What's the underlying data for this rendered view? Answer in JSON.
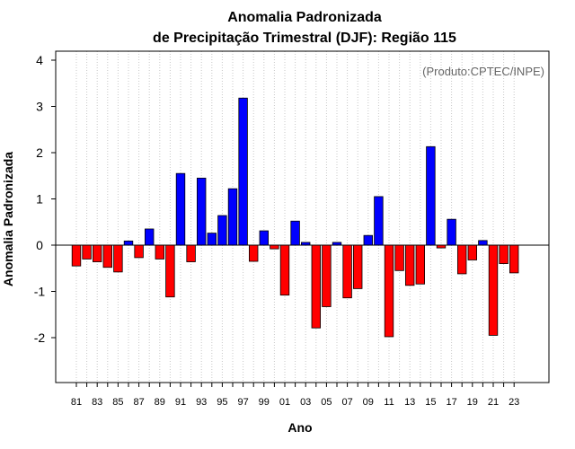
{
  "chart_data": {
    "type": "bar",
    "title": "Anomalia Padronizada",
    "subtitle": "de Precipitação Trimestral (DJF): Região 115",
    "xlabel": "Ano",
    "ylabel": "Anomalia Padronizada",
    "annotation": "(Produto:CPTEC/INPE)",
    "ylim": [
      -3,
      4.2
    ],
    "yticks": [
      -2,
      -1,
      0,
      1,
      2,
      3,
      4
    ],
    "xtick_labels": [
      "81",
      "83",
      "85",
      "87",
      "89",
      "91",
      "93",
      "95",
      "97",
      "99",
      "01",
      "03",
      "05",
      "07",
      "09",
      "11",
      "13",
      "15",
      "17",
      "19",
      "21",
      "23"
    ],
    "categories": [
      "81",
      "82",
      "83",
      "84",
      "85",
      "86",
      "87",
      "88",
      "89",
      "90",
      "91",
      "92",
      "93",
      "94",
      "95",
      "96",
      "97",
      "98",
      "99",
      "00",
      "01",
      "02",
      "03",
      "04",
      "05",
      "06",
      "07",
      "08",
      "09",
      "10",
      "11",
      "12",
      "13",
      "14",
      "15",
      "16",
      "17",
      "18",
      "19",
      "20",
      "21",
      "22",
      "23"
    ],
    "values": [
      -0.45,
      -0.3,
      -0.36,
      -0.48,
      -0.58,
      0.09,
      -0.27,
      0.35,
      -0.3,
      -1.12,
      1.55,
      -0.36,
      1.45,
      0.26,
      0.64,
      1.22,
      3.18,
      -0.35,
      0.31,
      -0.08,
      -1.08,
      0.52,
      0.06,
      -1.79,
      -1.33,
      0.06,
      -1.14,
      -0.94,
      0.21,
      1.05,
      -1.98,
      -0.55,
      -0.87,
      -0.84,
      2.13,
      -0.06,
      0.56,
      -0.62,
      -0.32,
      0.1,
      -1.95,
      -0.4,
      -0.6
    ],
    "positive_color": "#0000ff",
    "negative_color": "#ff0000",
    "grid": "vertical dotted"
  }
}
